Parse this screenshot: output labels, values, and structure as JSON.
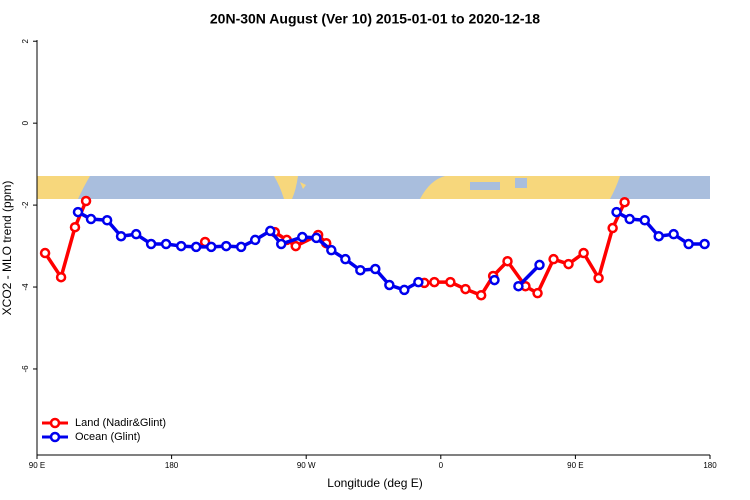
{
  "chart_data": {
    "type": "line",
    "title": "20N-30N August (Ver 10)   2015-01-01 to 2020-12-18",
    "xlabel": "Longitude (deg E)",
    "ylabel": "XCO2 - MLO trend (ppm)",
    "xlim": [
      90,
      540
    ],
    "ylim": [
      -8.1,
      2.03
    ],
    "xticks": [
      {
        "value": 90,
        "label": "90 E"
      },
      {
        "value": 180,
        "label": "180"
      },
      {
        "value": 270,
        "label": "90 W"
      },
      {
        "value": 360,
        "label": "0"
      },
      {
        "value": 450,
        "label": "90 E"
      },
      {
        "value": 540,
        "label": "180"
      }
    ],
    "yticks": [
      2,
      0,
      -2,
      -4,
      -6
    ],
    "legend": "bottom-left",
    "series": [
      {
        "name": "Land (Nadir&Glint)",
        "color": "#ff0000",
        "x": [
          95.4,
          106.1,
          115.4,
          122.8,
          160,
          202.4,
          230,
          249,
          257,
          263,
          278,
          283.4,
          320,
          349,
          355.7,
          366.4,
          376.5,
          387,
          395,
          404.6,
          416.6,
          424.7,
          435.4,
          445.4,
          455.5,
          465.5,
          474.9,
          482.9
        ],
        "values": [
          -3.17,
          -3.76,
          -2.54,
          -1.9,
          null,
          -2.9,
          null,
          -2.66,
          -2.85,
          -3.0,
          -2.73,
          -2.93,
          null,
          -3.9,
          -3.88,
          -3.88,
          -4.05,
          -4.2,
          -3.73,
          -3.37,
          -3.98,
          -4.15,
          -3.32,
          -3.44,
          -3.17,
          -3.78,
          -2.56,
          -1.93
        ]
      },
      {
        "name": "Ocean (Glint)",
        "color": "#0000ee",
        "x": [
          117.4,
          126.1,
          136.9,
          146.2,
          156.3,
          166.3,
          176.3,
          186.4,
          196.4,
          206.5,
          216.5,
          226.5,
          235.9,
          246,
          253.3,
          267.4,
          276.8,
          286.8,
          296.2,
          306.2,
          316.2,
          325.6,
          335.6,
          345,
          370,
          395.9,
          404,
          411.9,
          426,
          450,
          477.5,
          486.3,
          496.4,
          505.7,
          515.7,
          525.7,
          536.4
        ],
        "values": [
          -2.17,
          -2.34,
          -2.37,
          -2.76,
          -2.71,
          -2.95,
          -2.95,
          -3.0,
          -3.02,
          -3.02,
          -3.0,
          -3.02,
          -2.85,
          -2.63,
          -2.95,
          -2.78,
          -2.8,
          -3.1,
          -3.32,
          -3.59,
          -3.56,
          -3.95,
          -4.07,
          -3.88,
          null,
          -3.83,
          null,
          -3.98,
          -3.46,
          null,
          -2.17,
          -2.34,
          -2.37,
          -2.76,
          -2.71,
          -2.95,
          -2.95
        ]
      }
    ]
  }
}
